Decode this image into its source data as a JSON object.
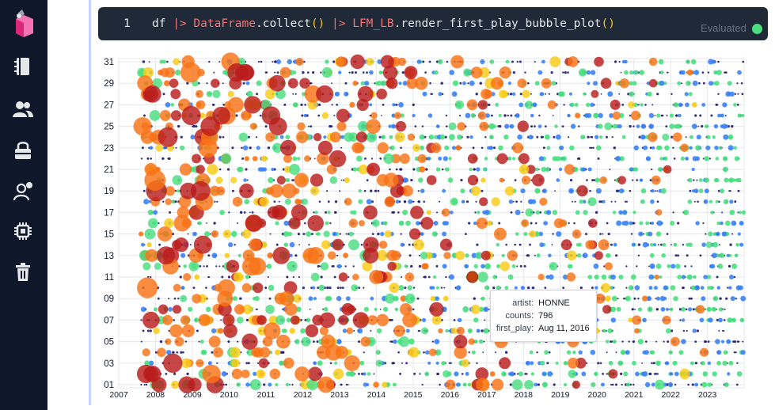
{
  "sidebar": {
    "items": [
      {
        "icon": "notebook-icon"
      },
      {
        "icon": "users-icon"
      },
      {
        "icon": "lock-icon"
      },
      {
        "icon": "user-notification-icon"
      },
      {
        "icon": "chip-icon"
      },
      {
        "icon": "trash-icon"
      }
    ]
  },
  "code_cell": {
    "line_number": "1",
    "tokens": {
      "t1": "df ",
      "t2": "|> ",
      "t3": "DataFrame",
      "t4": ".collect",
      "t5": "()",
      "t6": " |> ",
      "t7": "LFM_LB",
      "t8": ".render_first_play_bubble_plot",
      "t9": "()"
    },
    "status": "Evaluated",
    "status_color": "#4ade80"
  },
  "tooltip": {
    "artist_key": "artist:",
    "artist_val": "HONNE",
    "counts_key": "counts:",
    "counts_val": "796",
    "first_play_key": "first_play:",
    "first_play_val": "Aug 11, 2016"
  },
  "chart_data": {
    "type": "scatter",
    "x_kind": "date",
    "x_range": [
      "2007-01-01",
      "2023-12-31"
    ],
    "x_ticks": [
      "2007",
      "2008",
      "2009",
      "2010",
      "2011",
      "2012",
      "2013",
      "2014",
      "2015",
      "2016",
      "2017",
      "2018",
      "2019",
      "2020",
      "2021",
      "2022",
      "2023"
    ],
    "y_range": [
      1,
      31
    ],
    "y_ticks": [
      "01",
      "03",
      "05",
      "07",
      "09",
      "11",
      "13",
      "15",
      "17",
      "19",
      "21",
      "23",
      "25",
      "27",
      "29",
      "31"
    ],
    "grid": true,
    "color_scale": [
      "#1e1b6b",
      "#3b82f6",
      "#4ade80",
      "#facc15",
      "#f97316",
      "#b91c1c"
    ],
    "highlighted_point": {
      "artist": "HONNE",
      "counts": 796,
      "first_play": "2016-08-11"
    }
  }
}
